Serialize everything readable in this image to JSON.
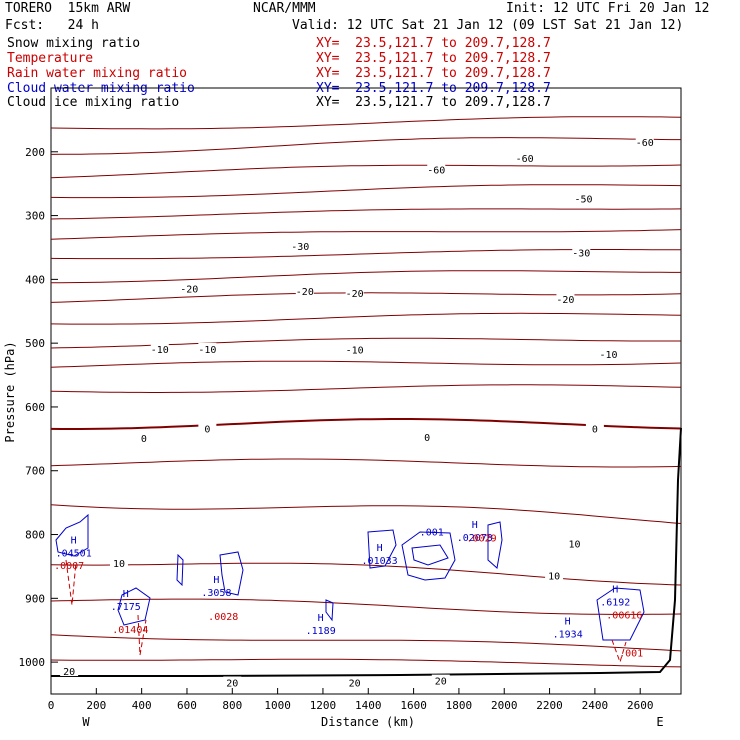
{
  "header": {
    "model": "TORERO  15km ARW",
    "center": "NCAR/MMM",
    "init": "Init: 12 UTC Fri 20 Jan 12",
    "fcst": "Fcst:   24 h",
    "valid": "Valid: 12 UTC Sat 21 Jan 12 (09 LST Sat 21 Jan 12)"
  },
  "fields": [
    {
      "name": "Snow mixing ratio",
      "xy": "XY=  23.5,121.7 to 209.7,128.7",
      "color": "#000000"
    },
    {
      "name": "Temperature",
      "xy": "XY=  23.5,121.7 to 209.7,128.7",
      "color": "#cc0000"
    },
    {
      "name": "Rain water mixing ratio",
      "xy": "XY=  23.5,121.7 to 209.7,128.7",
      "color": "#cc0000"
    },
    {
      "name": "Cloud water mixing ratio",
      "xy": "XY=  23.5,121.7 to 209.7,128.7",
      "color": "#0000cc"
    },
    {
      "name": "Cloud ice mixing ratio",
      "xy": "XY=  23.5,121.7 to 209.7,128.7",
      "color": "#000000"
    }
  ],
  "chart_data": {
    "type": "line",
    "xlabel": "Distance (km)",
    "ylabel": "Pressure (hPa)",
    "xlim": [
      0,
      2780
    ],
    "ylim": [
      1050,
      100
    ],
    "x_ticks": [
      0,
      200,
      400,
      600,
      800,
      1000,
      1200,
      1400,
      1600,
      1800,
      2000,
      2200,
      2400,
      2600
    ],
    "y_ticks": [
      200,
      300,
      400,
      500,
      600,
      700,
      800,
      900,
      1000
    ],
    "end_labels": {
      "left": "W",
      "right": "E"
    },
    "temperature_contour_labels": [
      {
        "value": "-60",
        "x": 1700,
        "y": 228
      },
      {
        "value": "-60",
        "x": 2090,
        "y": 210
      },
      {
        "value": "-60",
        "x": 2620,
        "y": 185
      },
      {
        "value": "-50",
        "x": 2350,
        "y": 273
      },
      {
        "value": "-30",
        "x": 1100,
        "y": 348
      },
      {
        "value": "-30",
        "x": 2340,
        "y": 358
      },
      {
        "value": "-20",
        "x": 610,
        "y": 414
      },
      {
        "value": "-20",
        "x": 1120,
        "y": 418
      },
      {
        "value": "-20",
        "x": 1340,
        "y": 421
      },
      {
        "value": "-20",
        "x": 2270,
        "y": 431
      },
      {
        "value": "-10",
        "x": 480,
        "y": 509
      },
      {
        "value": "-10",
        "x": 690,
        "y": 509
      },
      {
        "value": "-10",
        "x": 1340,
        "y": 510
      },
      {
        "value": "-10",
        "x": 2460,
        "y": 517
      },
      {
        "value": "0",
        "x": 410,
        "y": 649
      },
      {
        "value": "0",
        "x": 690,
        "y": 634
      },
      {
        "value": "0",
        "x": 1660,
        "y": 647
      },
      {
        "value": "0",
        "x": 2400,
        "y": 634
      },
      {
        "value": "10",
        "x": 2310,
        "y": 814
      },
      {
        "value": "10",
        "x": 2220,
        "y": 864
      },
      {
        "value": "10",
        "x": 300,
        "y": 845
      },
      {
        "value": "20",
        "x": 80,
        "y": 1014
      },
      {
        "value": "20",
        "x": 800,
        "y": 1032
      },
      {
        "value": "20",
        "x": 1340,
        "y": 1032
      },
      {
        "value": "20",
        "x": 1720,
        "y": 1029
      }
    ],
    "extrema_labels": [
      {
        "mark": "H",
        "value": ".04501",
        "x": 100,
        "y": 828,
        "color": "#0000cc"
      },
      {
        "mark": "",
        "value": ".0007",
        "x": 80,
        "y": 848,
        "color": "#cc0000"
      },
      {
        "mark": "H",
        "value": ".7175",
        "x": 330,
        "y": 912,
        "color": "#0000cc"
      },
      {
        "mark": "",
        "value": ".01404",
        "x": 350,
        "y": 948,
        "color": "#cc0000"
      },
      {
        "mark": "H",
        "value": ".3058",
        "x": 730,
        "y": 890,
        "color": "#0000cc"
      },
      {
        "mark": "",
        "value": ".0028",
        "x": 760,
        "y": 928,
        "color": "#cc0000"
      },
      {
        "mark": "H",
        "value": ".1189",
        "x": 1190,
        "y": 950,
        "color": "#0000cc"
      },
      {
        "mark": "H",
        "value": ".01033",
        "x": 1450,
        "y": 840,
        "color": "#0000cc"
      },
      {
        "mark": "",
        "value": ".001",
        "x": 1680,
        "y": 795,
        "color": "#0000cc"
      },
      {
        "mark": "H",
        "value": ".02073",
        "x": 1870,
        "y": 804,
        "color": "#0000cc"
      },
      {
        "mark": "",
        "value": ".0029",
        "x": 1900,
        "y": 805,
        "color": "#cc0000"
      },
      {
        "mark": "H",
        "value": ".1934",
        "x": 2280,
        "y": 955,
        "color": "#0000cc"
      },
      {
        "mark": "H",
        "value": ".6192",
        "x": 2490,
        "y": 905,
        "color": "#0000cc"
      },
      {
        "mark": "",
        "value": ".00616",
        "x": 2530,
        "y": 925,
        "color": "#cc0000"
      },
      {
        "mark": "",
        "value": ".001",
        "x": 2560,
        "y": 985,
        "color": "#cc0000"
      }
    ]
  },
  "colors": {
    "temperature": "#800000",
    "cloud_water": "#0000cc",
    "rain": "#cc0000",
    "ground": "#000000"
  }
}
